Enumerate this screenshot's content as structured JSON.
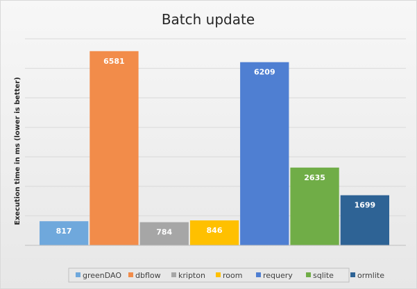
{
  "chart_data": {
    "type": "bar",
    "title": "Batch update",
    "ylabel": "Execution time in ms (lower is better)",
    "xlabel": "",
    "ylim": [
      0,
      7000
    ],
    "grid": true,
    "legend_position": "bottom",
    "series": [
      {
        "name": "greenDAO",
        "value": 817,
        "color": "#6fa8dc"
      },
      {
        "name": "dbflow",
        "value": 6581,
        "color": "#f28c4a"
      },
      {
        "name": "kripton",
        "value": 784,
        "color": "#a6a6a6"
      },
      {
        "name": "room",
        "value": 846,
        "color": "#ffc000"
      },
      {
        "name": "requery",
        "value": 6209,
        "color": "#4f7fd2"
      },
      {
        "name": "sqlite",
        "value": 2635,
        "color": "#70ad47"
      },
      {
        "name": "ormlite",
        "value": 1699,
        "color": "#2e6395"
      }
    ]
  }
}
